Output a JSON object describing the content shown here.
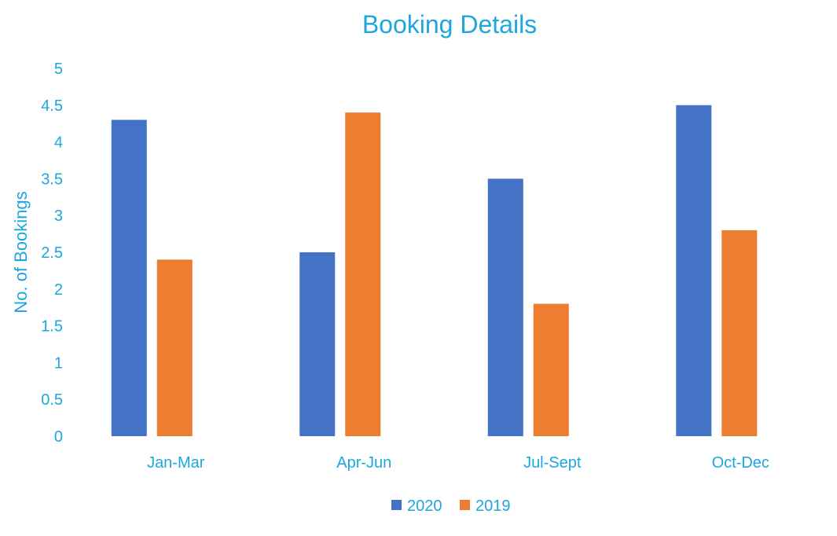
{
  "chart_data": {
    "type": "bar",
    "title": "Booking Details",
    "xlabel": "",
    "ylabel": "No. of Bookings",
    "categories": [
      "Jan-Mar",
      "Apr-Jun",
      "Jul-Sept",
      "Oct-Dec"
    ],
    "series": [
      {
        "name": "2020",
        "values": [
          4.3,
          2.5,
          3.5,
          4.5
        ],
        "color": "#4472C4"
      },
      {
        "name": "2019",
        "values": [
          2.4,
          4.4,
          1.8,
          2.8
        ],
        "color": "#ED7D31"
      }
    ],
    "ylim": [
      0,
      5
    ],
    "yticks": [
      "0",
      "0.5",
      "1",
      "1.5",
      "2",
      "2.5",
      "3",
      "3.5",
      "4",
      "4.5",
      "5"
    ],
    "grid": false,
    "legend_position": "bottom",
    "text_color": "#1CA7DE"
  }
}
